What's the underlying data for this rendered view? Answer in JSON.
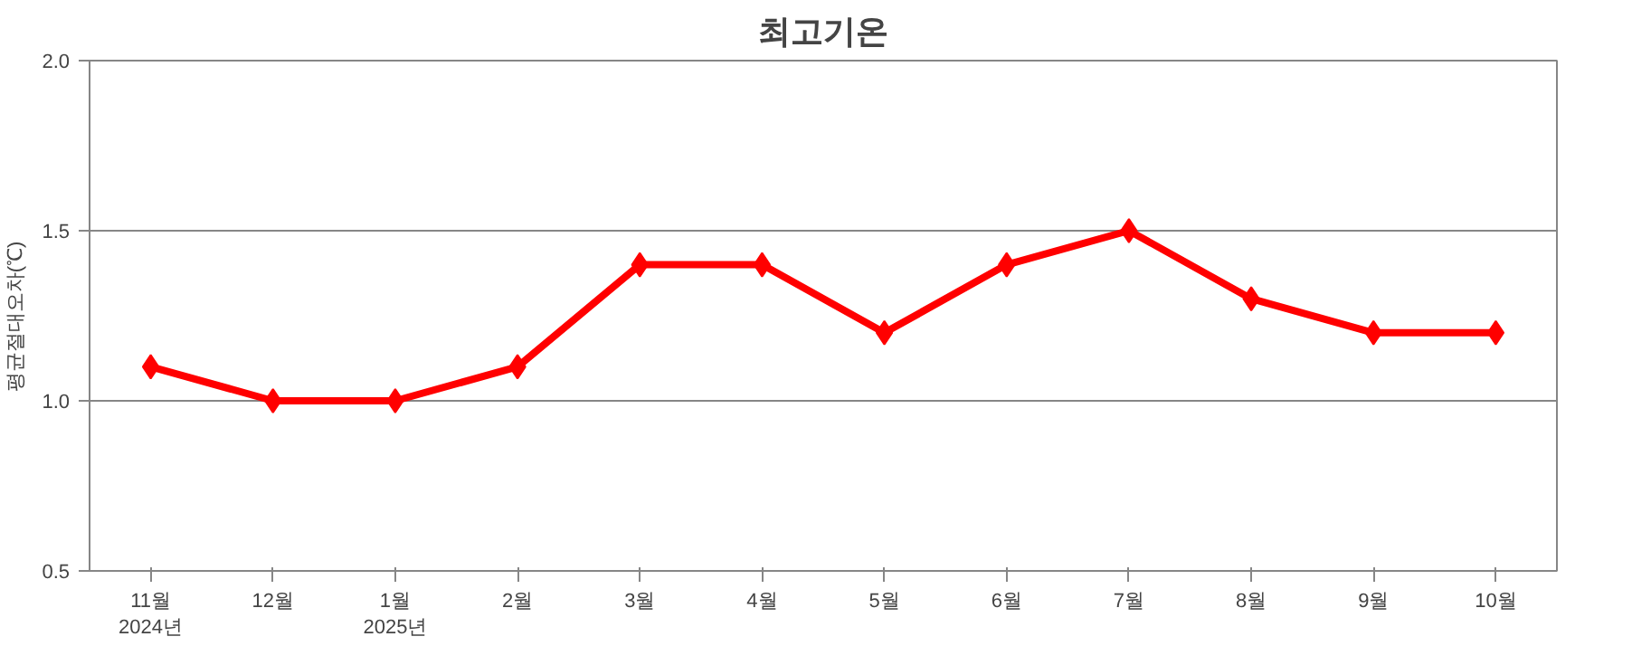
{
  "chart_data": {
    "type": "line",
    "title": "최고기온",
    "ylabel": "평균절대오차(℃)",
    "categories": [
      "11월\n2024년",
      "12월",
      "1월\n2025년",
      "2월",
      "3월",
      "4월",
      "5월",
      "6월",
      "7월",
      "8월",
      "9월",
      "10월"
    ],
    "series": [
      {
        "color": "#ff0000",
        "values": [
          1.1,
          1.0,
          1.0,
          1.1,
          1.4,
          1.4,
          1.2,
          1.4,
          1.5,
          1.3,
          1.2,
          1.2
        ]
      }
    ],
    "ylim": [
      0.5,
      2.0
    ],
    "yticks": [
      {
        "value": 0.5,
        "label": "0.5"
      },
      {
        "value": 1.0,
        "label": "1.0"
      },
      {
        "value": 1.5,
        "label": "1.5"
      },
      {
        "value": 2.0,
        "label": "2.0"
      }
    ],
    "grid": "y",
    "marker": "diamond",
    "line_style": "solid"
  }
}
